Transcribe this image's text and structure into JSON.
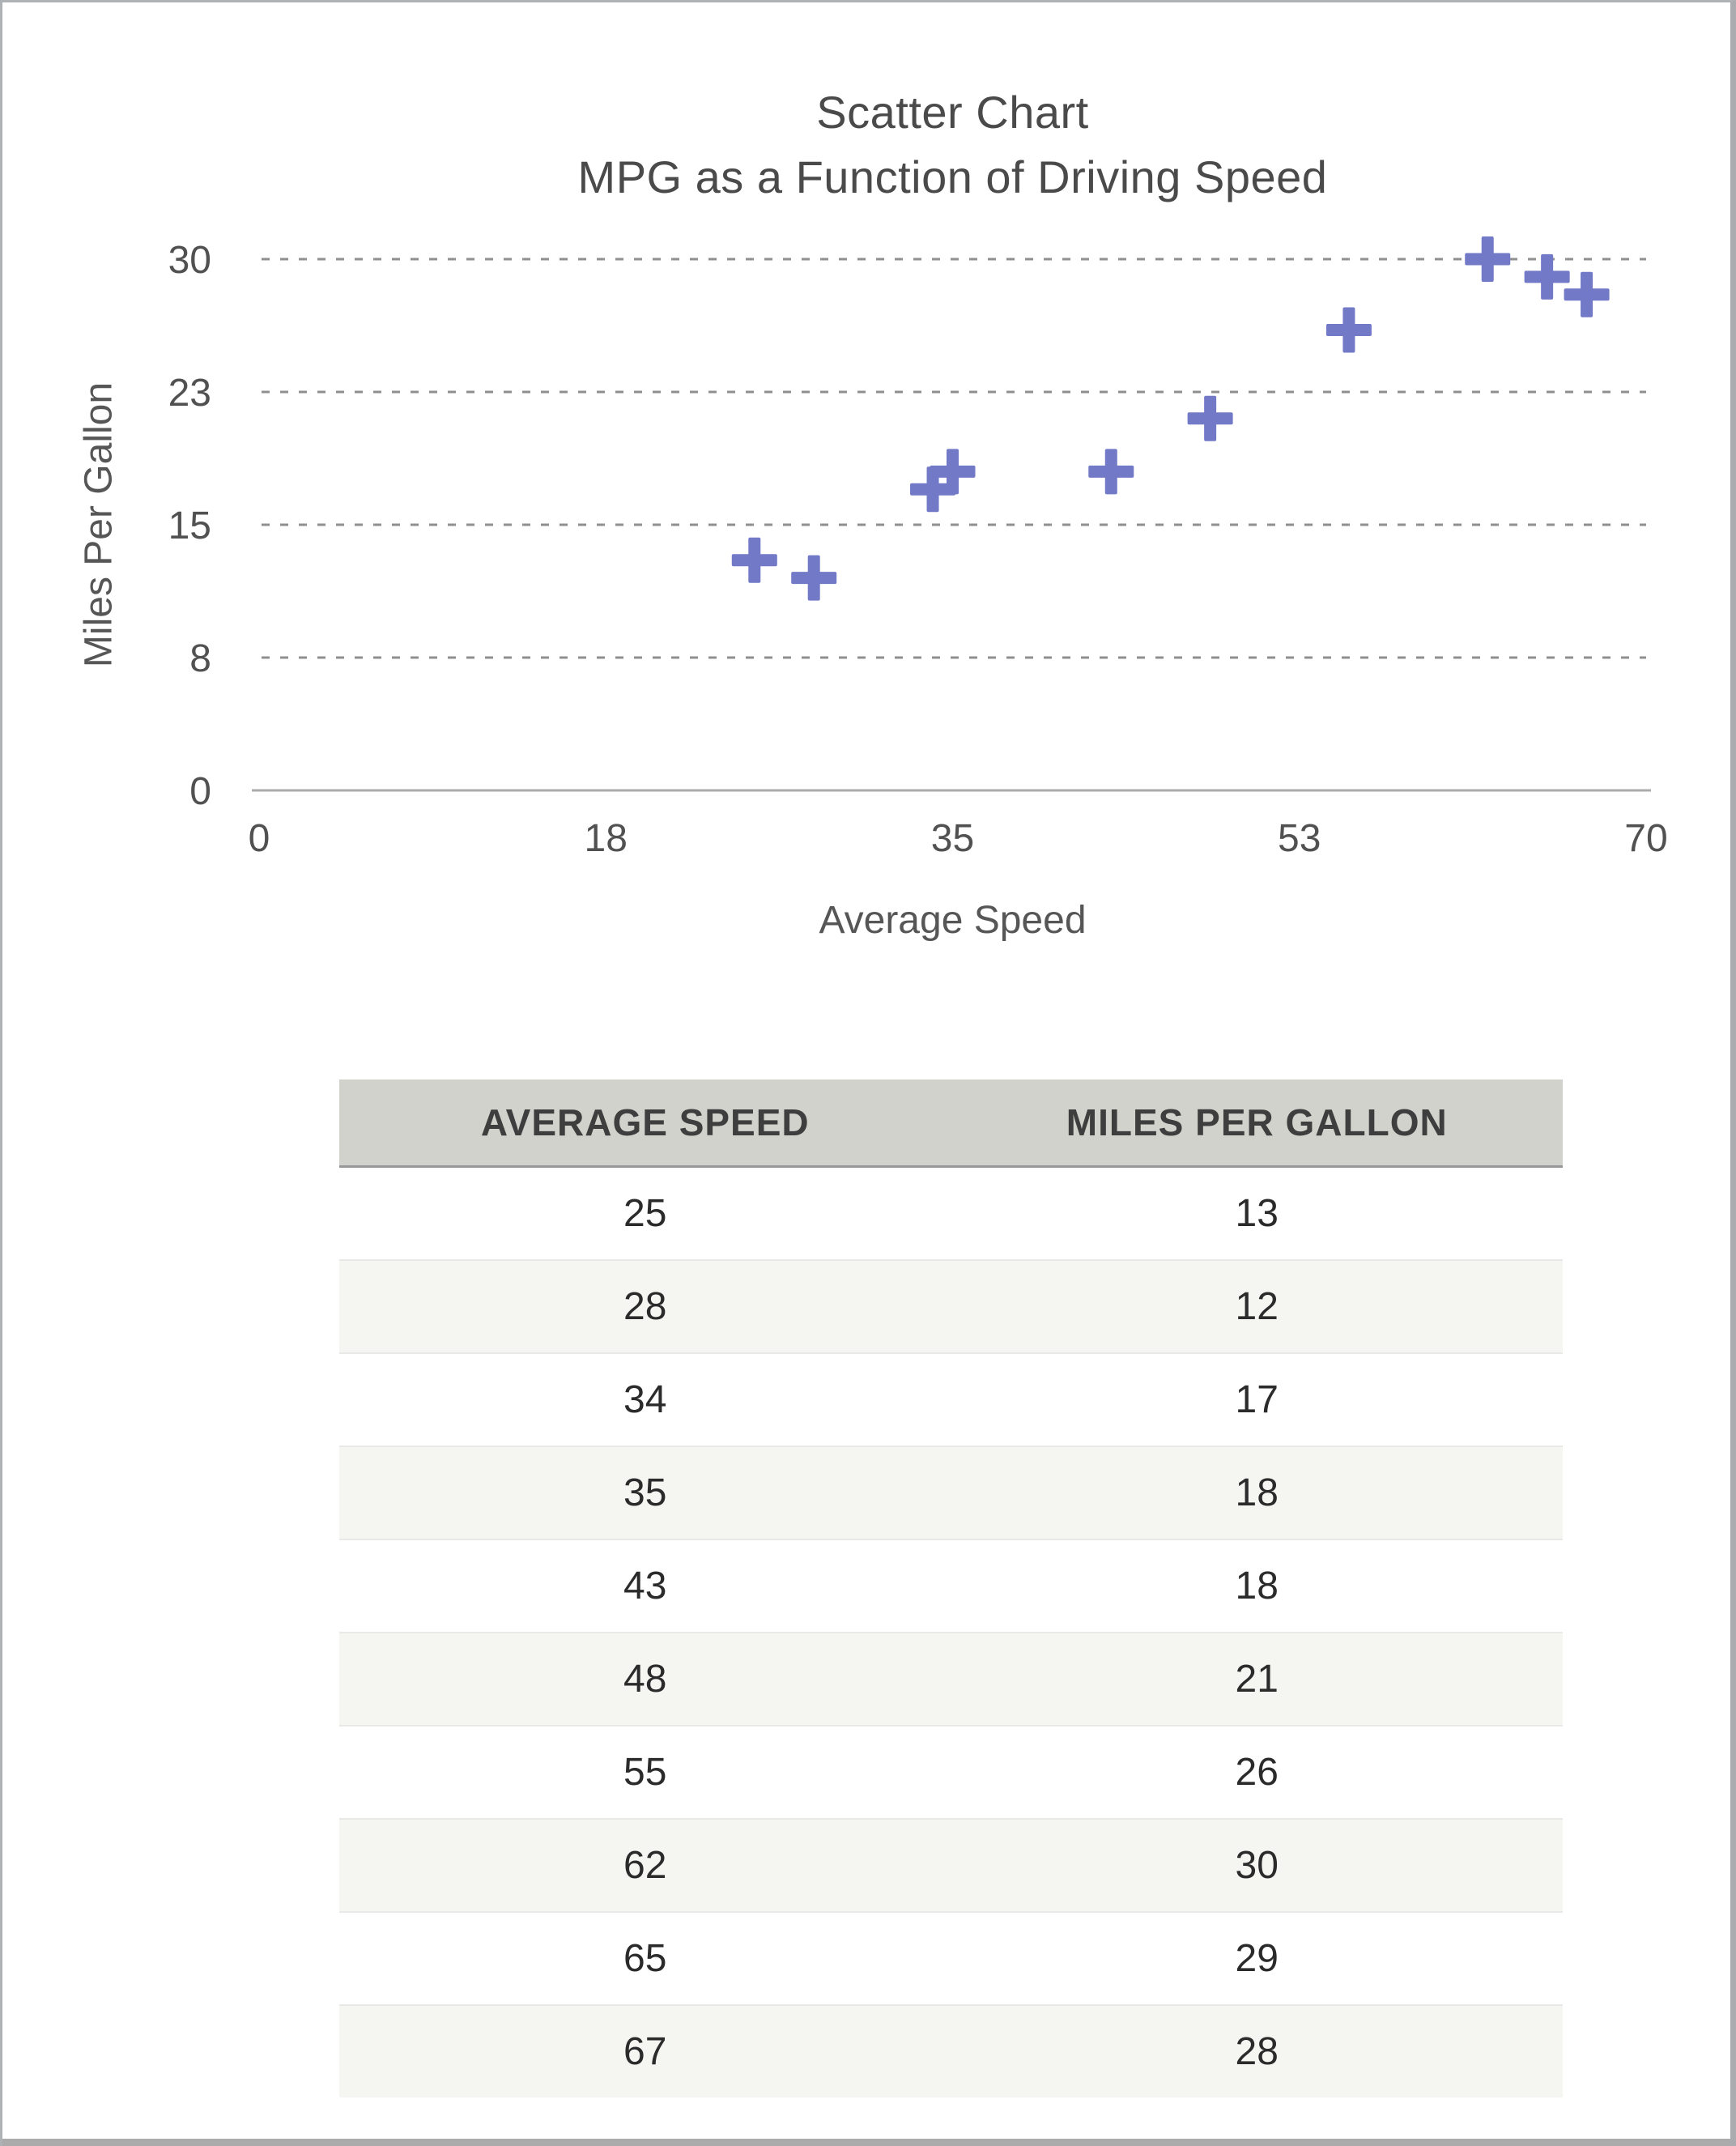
{
  "chart": {
    "title_line1": "Scatter Chart",
    "title_line2": "MPG as a Function of Driving Speed"
  },
  "chart_data": {
    "type": "scatter",
    "title": "Scatter Chart",
    "subtitle": "MPG as a Function of Driving Speed",
    "xlabel": "Average Speed",
    "ylabel": "Miles Per Gallon",
    "x": [
      25,
      28,
      34,
      35,
      43,
      48,
      55,
      62,
      65,
      67
    ],
    "y": [
      13,
      12,
      17,
      18,
      18,
      21,
      26,
      30,
      29,
      28
    ],
    "xlim": [
      0,
      70
    ],
    "ylim": [
      0,
      30
    ],
    "x_ticks": {
      "positions": [
        0,
        17.5,
        35,
        52.5,
        70
      ],
      "labels": [
        "0",
        "18",
        "35",
        "53",
        "70"
      ]
    },
    "y_ticks": {
      "positions": [
        0,
        7.5,
        15,
        22.5,
        30
      ],
      "labels": [
        "0",
        "8",
        "15",
        "23",
        "30"
      ]
    },
    "grid": "horizontal dotted gridlines at y ticks, solid baseline at y=0",
    "legend_position": "none",
    "marker": "plus",
    "marker_color": "#7279C7"
  },
  "table": {
    "headers": [
      "AVERAGE SPEED",
      "MILES PER GALLON"
    ],
    "rows": [
      [
        "25",
        "13"
      ],
      [
        "28",
        "12"
      ],
      [
        "34",
        "17"
      ],
      [
        "35",
        "18"
      ],
      [
        "43",
        "18"
      ],
      [
        "48",
        "21"
      ],
      [
        "55",
        "26"
      ],
      [
        "62",
        "30"
      ],
      [
        "65",
        "29"
      ],
      [
        "67",
        "28"
      ]
    ]
  },
  "colors": {
    "marker": "#7279C7",
    "grid_line": "#8F8F8F",
    "axis_line": "#ABABAB",
    "tick_text": "#515151",
    "title_text": "#4A4A4A",
    "table_header_bg": "#D2D2CC",
    "table_alt_row_bg": "#F5F5F2",
    "window_edge": "#ABABAB"
  }
}
